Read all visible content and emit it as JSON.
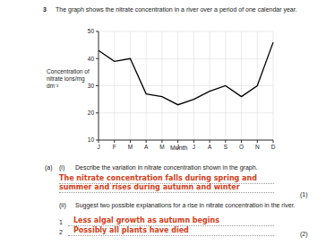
{
  "question": {
    "number": "3",
    "text": "The graph shows the nitrate concentration in a river over a period of one calendar year."
  },
  "chart_data": {
    "type": "line",
    "categories": [
      "J",
      "F",
      "M",
      "A",
      "M",
      "J",
      "J",
      "A",
      "S",
      "O",
      "N",
      "D"
    ],
    "values": [
      43,
      39,
      40,
      27,
      26,
      23,
      25,
      28,
      30,
      26,
      30,
      46
    ],
    "color": "#000000",
    "ylim": [
      10,
      50
    ],
    "yticks": [
      10,
      20,
      30,
      40,
      50
    ],
    "grid": true,
    "x_label": "Month",
    "y_label": "Concentration of nitrate ions/mg dm⁻³"
  },
  "part_a": {
    "label": "(a)",
    "i": {
      "label": "(i)",
      "prompt": "Describe the variation in nitrate concentration shown in the graph.",
      "answer": "The nitrate concentration falls during spring and summer and rises during autumn and winter",
      "marks": "(1)"
    },
    "ii": {
      "label": "(ii)",
      "prompt": "Suggest two possible explanations for a rise in nitrate concentration in the river.",
      "answers": [
        {
          "number": "1",
          "text": "Less algal growth as autumn begins"
        },
        {
          "number": "2",
          "text": "Possibly all plants have died"
        }
      ],
      "marks": "(2)"
    }
  }
}
